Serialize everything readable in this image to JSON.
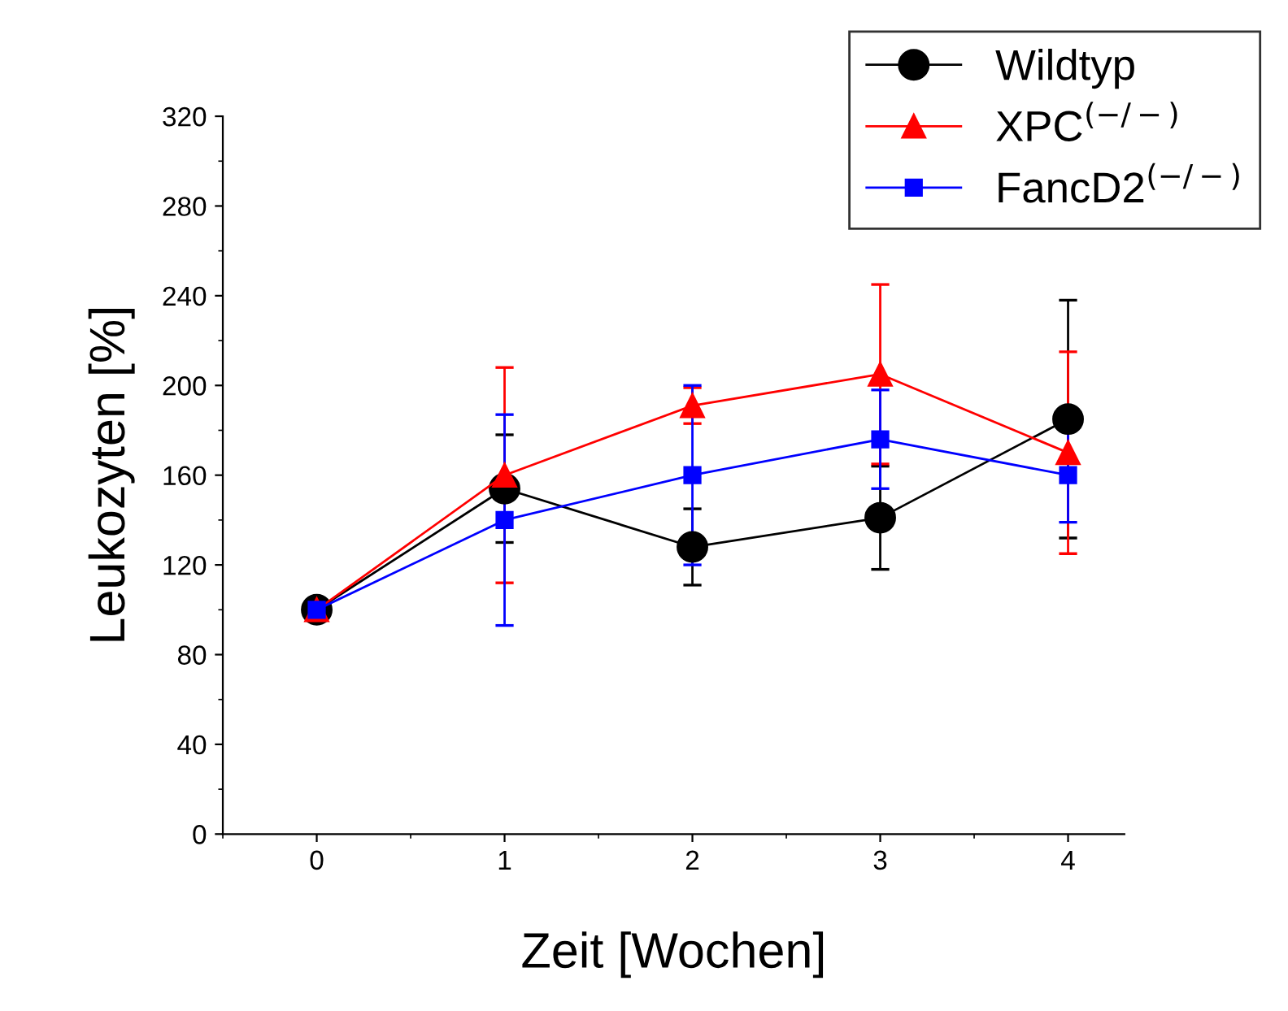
{
  "chart_data": {
    "type": "line",
    "xlabel": "Zeit [Wochen]",
    "ylabel": "Leukozyten [%]",
    "x": [
      0,
      1,
      2,
      3,
      4
    ],
    "xlim": [
      -0.5,
      4.3
    ],
    "xticks": [
      0,
      1,
      2,
      3,
      4
    ],
    "ylim": [
      0,
      320
    ],
    "yticks": [
      0,
      40,
      80,
      120,
      160,
      200,
      240,
      280,
      320
    ],
    "legend": "top right",
    "grid": false,
    "line_style": "solid",
    "series": [
      {
        "name": "Wildtyp",
        "color": "#000000",
        "marker": "circle",
        "values": [
          100,
          154,
          128,
          141,
          185
        ],
        "errors": [
          null,
          24,
          17,
          23,
          53
        ]
      },
      {
        "name": "XPC$^{(−/−)}$",
        "color": "#ff0000",
        "marker": "triangle",
        "values": [
          100,
          160,
          191,
          205,
          170
        ],
        "errors": [
          null,
          48,
          8,
          40,
          45
        ]
      },
      {
        "name": "FancD2$^{(−/−)}$",
        "color": "#0000ff",
        "marker": "square",
        "values": [
          100,
          140,
          160,
          176,
          160
        ],
        "errors": [
          null,
          47,
          40,
          22,
          21
        ]
      }
    ]
  }
}
